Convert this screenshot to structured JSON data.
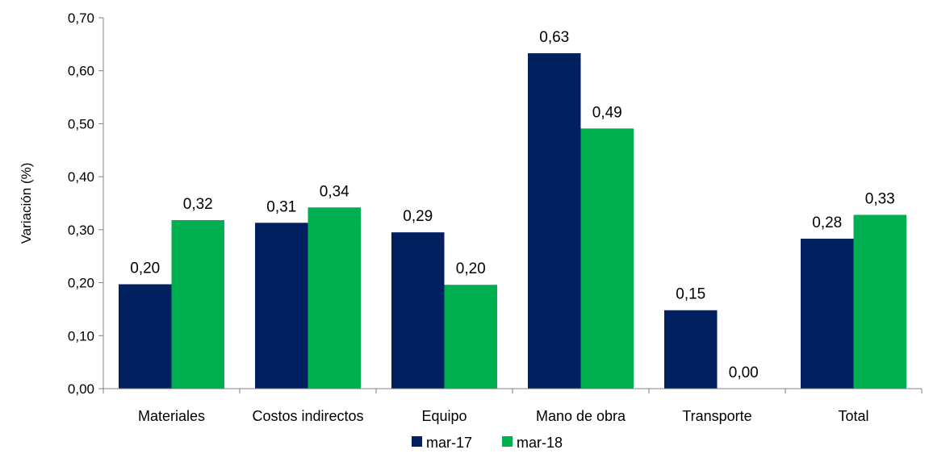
{
  "chart_data": {
    "type": "bar",
    "title": "",
    "xlabel": "",
    "ylabel": "Variación (%)",
    "ylim": [
      0,
      0.7
    ],
    "yticks": [
      0,
      0.1,
      0.2,
      0.3,
      0.4,
      0.5,
      0.6,
      0.7
    ],
    "ytick_labels": [
      "0,00",
      "0,10",
      "0,20",
      "0,30",
      "0,40",
      "0,50",
      "0,60",
      "0,70"
    ],
    "categories": [
      "Materiales",
      "Costos indirectos",
      "Equipo",
      "Mano de obra",
      "Transporte",
      "Total"
    ],
    "series": [
      {
        "name": "mar-17",
        "color": "#002060",
        "values": [
          0.197,
          0.313,
          0.295,
          0.633,
          0.148,
          0.283
        ],
        "labels": [
          "0,20",
          "0,31",
          "0,29",
          "0,63",
          "0,15",
          "0,28"
        ]
      },
      {
        "name": "mar-18",
        "color": "#00B050",
        "values": [
          0.318,
          0.342,
          0.196,
          0.491,
          0.0,
          0.328
        ],
        "labels": [
          "0,32",
          "0,34",
          "0,20",
          "0,49",
          "0,00",
          "0,33"
        ]
      }
    ],
    "grid": false,
    "legend": "bottom-center"
  }
}
